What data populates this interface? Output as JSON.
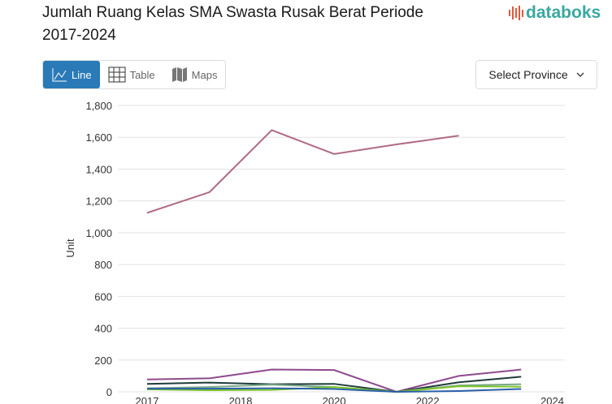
{
  "header": {
    "title": "Jumlah Ruang Kelas SMA Swasta Rusak Berat Periode 2017-2024",
    "logo": "databoks"
  },
  "tabs": [
    {
      "label": "Line",
      "icon": "line-chart-icon",
      "active": true
    },
    {
      "label": "Table",
      "icon": "table-icon"
    },
    {
      "label": "Maps",
      "icon": "map-icon"
    }
  ],
  "province_select": {
    "label": "Select Province",
    "icon": "chevron-down-icon"
  },
  "chart_data": {
    "type": "line",
    "title": "",
    "xlabel": "",
    "ylabel": "Unit",
    "ylim": [
      0,
      1800
    ],
    "yticks": [
      0,
      200,
      400,
      600,
      800,
      1000,
      1200,
      1400,
      1600,
      1800
    ],
    "ytick_labels": [
      "0",
      "200",
      "400",
      "600",
      "800",
      "1,000",
      "1,200",
      "1,400",
      "1,600",
      "1,800"
    ],
    "xticks": [
      {
        "label": "2017",
        "at": 0
      },
      {
        "label": "2018",
        "at": 1.5
      },
      {
        "label": "2020",
        "at": 3
      },
      {
        "label": "2022",
        "at": 4.5
      },
      {
        "label": "2024",
        "at": 6.5
      }
    ],
    "grid": true,
    "series": [
      {
        "color": "#b06a85",
        "values": [
          1125,
          1255,
          1645,
          1495,
          1555,
          1610,
          null
        ]
      },
      {
        "color": "#8e4a8e",
        "values": [
          78,
          85,
          140,
          137,
          0,
          100,
          140
        ]
      },
      {
        "color": "#1f3a3a",
        "values": [
          50,
          58,
          48,
          50,
          0,
          60,
          95
        ]
      },
      {
        "color": "#7aa88a",
        "values": [
          22,
          30,
          45,
          30,
          0,
          40,
          48
        ]
      },
      {
        "color": "#7cc42a",
        "values": [
          15,
          10,
          12,
          30,
          0,
          35,
          32
        ]
      },
      {
        "color": "#2a5fa8",
        "values": [
          20,
          20,
          22,
          18,
          0,
          5,
          18
        ]
      }
    ]
  }
}
